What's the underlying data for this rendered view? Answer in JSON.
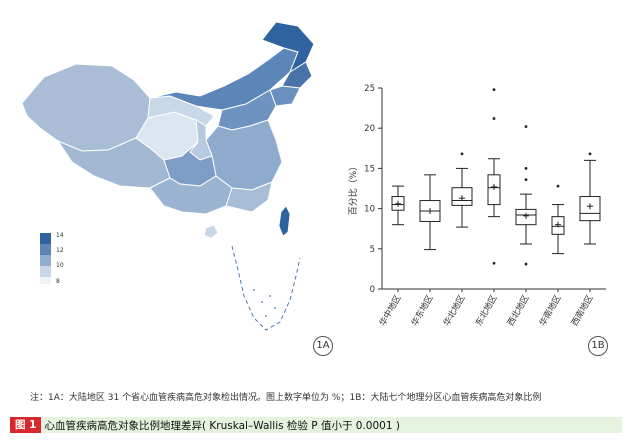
{
  "map_legend": {
    "ticks": [
      "14",
      "12",
      "10",
      "8"
    ],
    "colors": [
      "#2e63a0",
      "#5c86b8",
      "#91aed0",
      "#c9d8e8",
      "#eef3f9"
    ]
  },
  "panel_labels": {
    "a": "1A",
    "b": "1B"
  },
  "note": "注：1A：大陆地区 31 个省心血管疾病高危对象检出情况。图上数字单位为 %；1B：大陆七个地理分区心血管疾病高危对象比例",
  "caption": {
    "tag": "图 1",
    "text": "心血管疾病高危对象比例地理差异( Kruskal–Wallis 检验 P 值小于 0.0001 )"
  },
  "chart_data": {
    "type": "box",
    "title": "",
    "xlabel": "",
    "ylabel": "百分比（%）",
    "ylim": [
      0,
      25
    ],
    "yticks": [
      0,
      5,
      10,
      15,
      20,
      25
    ],
    "categories": [
      "华中地区",
      "华东地区",
      "华北地区",
      "东北地区",
      "西北地区",
      "华南地区",
      "西南地区"
    ],
    "series": [
      {
        "category": "华中地区",
        "min": 8.0,
        "q1": 9.8,
        "median": 10.5,
        "q3": 11.5,
        "max": 12.8,
        "mean": 10.6,
        "outliers": []
      },
      {
        "category": "华东地区",
        "min": 4.9,
        "q1": 8.4,
        "median": 9.7,
        "q3": 11.0,
        "max": 14.2,
        "mean": 9.7,
        "outliers": []
      },
      {
        "category": "华北地区",
        "min": 7.7,
        "q1": 10.4,
        "median": 11.0,
        "q3": 12.6,
        "max": 15.0,
        "mean": 11.3,
        "outliers": [
          16.8
        ]
      },
      {
        "category": "东北地区",
        "min": 9.0,
        "q1": 10.5,
        "median": 12.6,
        "q3": 14.2,
        "max": 16.2,
        "mean": 12.7,
        "outliers": [
          3.2,
          21.2,
          24.8
        ]
      },
      {
        "category": "西北地区",
        "min": 5.6,
        "q1": 8.0,
        "median": 9.2,
        "q3": 9.9,
        "max": 11.8,
        "mean": 9.1,
        "outliers": [
          3.1,
          13.6,
          15.0,
          20.2
        ]
      },
      {
        "category": "华南地区",
        "min": 4.4,
        "q1": 6.8,
        "median": 7.8,
        "q3": 9.0,
        "max": 10.5,
        "mean": 8.0,
        "outliers": [
          12.8
        ]
      },
      {
        "category": "西南地区",
        "min": 5.6,
        "q1": 8.5,
        "median": 9.4,
        "q3": 11.5,
        "max": 16.0,
        "mean": 10.3,
        "outliers": [
          16.8
        ]
      }
    ]
  }
}
